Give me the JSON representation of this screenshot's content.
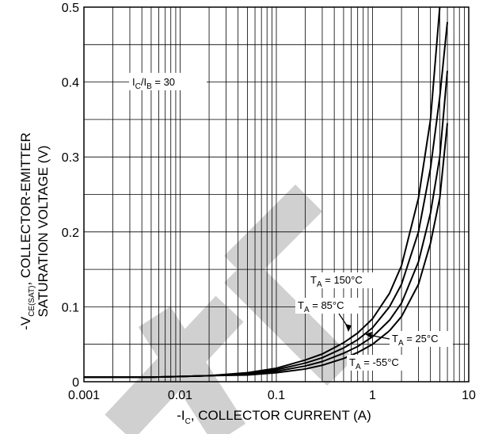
{
  "chart_data": {
    "type": "line",
    "x_scale": "log",
    "y_scale": "linear",
    "xlim": [
      0.001,
      10
    ],
    "ylim": [
      0,
      0.5
    ],
    "grid": true,
    "x_ticks": [
      "0.001",
      "0.01",
      "0.1",
      "1",
      "10"
    ],
    "y_ticks": [
      "0",
      "0.1",
      "0.2",
      "0.3",
      "0.4",
      "0.5"
    ],
    "xlabel": {
      "pre": "-I",
      "sub": "C",
      "post": ", COLLECTOR CURRENT (A)"
    },
    "ylabel": {
      "line1_pre": "-V",
      "line1_sub": "CE(SAT)",
      "line1_post": ", COLLECTOR-EMITTER",
      "line2": "SATURATION VOLTAGE (V)"
    },
    "condition": {
      "a": "I",
      "a_sub": "C",
      "sep": "/I",
      "b_sub": "B",
      "rest": " = 30"
    },
    "watermark_color": "#d0d0d0",
    "series": [
      {
        "name": "150°C",
        "label": {
          "pre": "T",
          "sub": "A",
          "post": " = 150°C"
        },
        "x": [
          0.001,
          0.005,
          0.01,
          0.02,
          0.05,
          0.1,
          0.2,
          0.3,
          0.5,
          0.7,
          1,
          1.5,
          2,
          3,
          4,
          5
        ],
        "y": [
          0.006,
          0.006,
          0.007,
          0.008,
          0.012,
          0.018,
          0.029,
          0.037,
          0.052,
          0.065,
          0.084,
          0.118,
          0.155,
          0.245,
          0.35,
          0.5
        ]
      },
      {
        "name": "85°C",
        "label": {
          "pre": "T",
          "sub": "A",
          "post": " = 85°C"
        },
        "x": [
          0.001,
          0.005,
          0.01,
          0.02,
          0.05,
          0.1,
          0.2,
          0.3,
          0.5,
          0.7,
          1,
          1.5,
          2,
          3,
          4,
          5,
          6
        ],
        "y": [
          0.006,
          0.006,
          0.007,
          0.008,
          0.011,
          0.016,
          0.025,
          0.032,
          0.045,
          0.056,
          0.072,
          0.1,
          0.13,
          0.2,
          0.285,
          0.38,
          0.48
        ]
      },
      {
        "name": "25°C",
        "label": {
          "pre": "T",
          "sub": "A",
          "post": " = 25°C"
        },
        "x": [
          0.001,
          0.005,
          0.01,
          0.02,
          0.05,
          0.1,
          0.2,
          0.3,
          0.5,
          0.7,
          1,
          1.5,
          2,
          3,
          4,
          5,
          6
        ],
        "y": [
          0.006,
          0.006,
          0.007,
          0.008,
          0.01,
          0.014,
          0.021,
          0.027,
          0.038,
          0.047,
          0.06,
          0.082,
          0.105,
          0.16,
          0.225,
          0.3,
          0.415
        ]
      },
      {
        "name": "-55°C",
        "label": {
          "pre": "T",
          "sub": "A",
          "post": " = -55°C"
        },
        "x": [
          0.001,
          0.005,
          0.01,
          0.02,
          0.05,
          0.1,
          0.2,
          0.3,
          0.5,
          0.7,
          1,
          1.5,
          2,
          3,
          4,
          5,
          6
        ],
        "y": [
          0.006,
          0.006,
          0.007,
          0.008,
          0.009,
          0.012,
          0.017,
          0.022,
          0.031,
          0.039,
          0.05,
          0.068,
          0.087,
          0.13,
          0.185,
          0.245,
          0.345
        ]
      }
    ]
  }
}
